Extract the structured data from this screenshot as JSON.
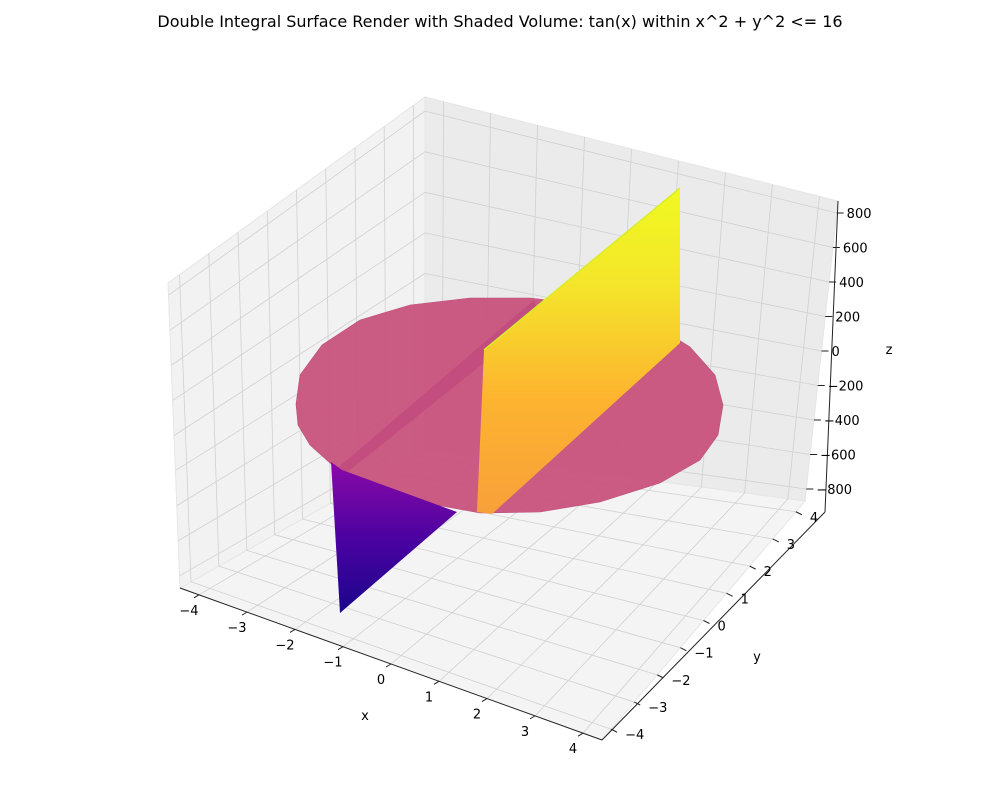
{
  "chart_data": {
    "type": "surface3d",
    "title": "Double Integral Surface Render with Shaded Volume: tan(x) within x^2 + y^2 <= 16",
    "function": "tan(x)",
    "region": "x^2 + y^2 <= 16",
    "xlabel": "x",
    "ylabel": "y",
    "zlabel": "z",
    "xlim": [
      -4,
      4
    ],
    "ylim": [
      -4,
      4
    ],
    "zlim": [
      -800,
      800
    ],
    "x_ticks": [
      "−4",
      "−3",
      "−2",
      "−1",
      "0",
      "1",
      "2",
      "3",
      "4"
    ],
    "y_ticks": [
      "−4",
      "−3",
      "−2",
      "−1",
      "0",
      "1",
      "2",
      "3",
      "4"
    ],
    "z_ticks": [
      "−800",
      "−600",
      "−400",
      "−200",
      "0",
      "200",
      "400",
      "600",
      "800"
    ],
    "shaded_volume_color": "#c8507a",
    "colormap": "plasma",
    "grid": true
  }
}
